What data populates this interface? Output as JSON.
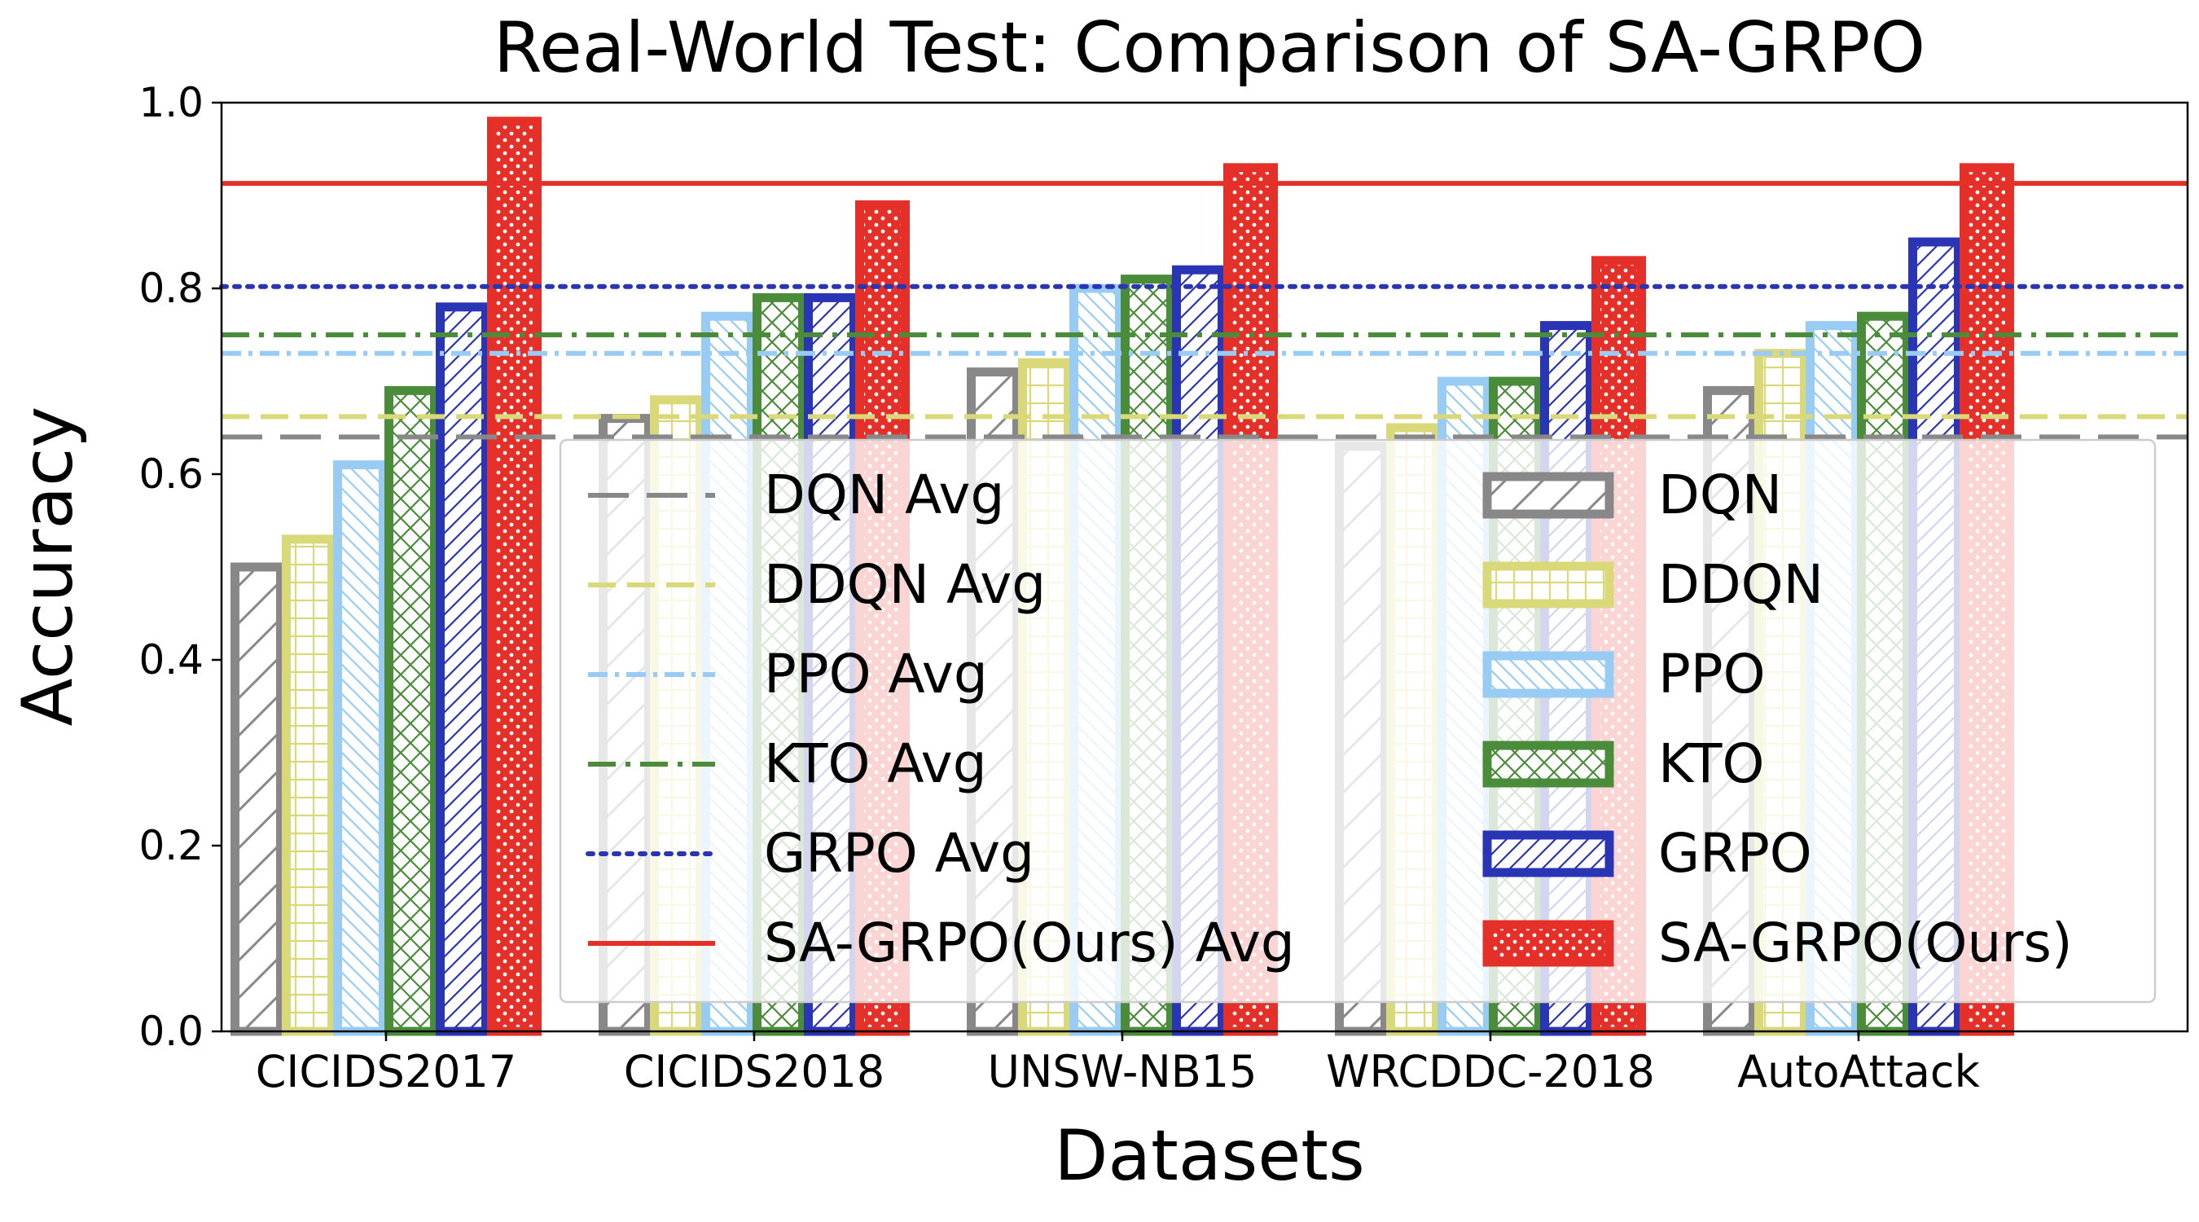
{
  "colors": {
    "DQN": "#888888",
    "DDQN": "#d9d97a",
    "PPO": "#99ccf5",
    "KTO": "#4a8c3a",
    "GRPO": "#2a35b5",
    "SA-GRPO(Ours)": "#e5302a"
  },
  "chart_data": {
    "type": "bar",
    "title": "Real-World Test: Comparison of SA-GRPO",
    "xlabel": "Datasets",
    "ylabel": "Accuracy",
    "ylim": [
      0.0,
      1.0
    ],
    "yticks": [
      "0.0",
      "0.2",
      "0.4",
      "0.6",
      "0.8",
      "1.0"
    ],
    "categories": [
      "CICIDS2017",
      "CICIDS2018",
      "UNSW-NB15",
      "WRCDDC-2018",
      "AutoAttack"
    ],
    "series": [
      {
        "name": "DQN",
        "hatch": "diag",
        "values": [
          0.5,
          0.66,
          0.71,
          0.63,
          0.69
        ]
      },
      {
        "name": "DDQN",
        "hatch": "grid",
        "values": [
          0.53,
          0.68,
          0.72,
          0.65,
          0.73
        ]
      },
      {
        "name": "PPO",
        "hatch": "rdiag",
        "values": [
          0.61,
          0.77,
          0.8,
          0.7,
          0.76
        ]
      },
      {
        "name": "KTO",
        "hatch": "cross",
        "values": [
          0.69,
          0.79,
          0.81,
          0.7,
          0.77
        ]
      },
      {
        "name": "GRPO",
        "hatch": "diag",
        "values": [
          0.78,
          0.79,
          0.82,
          0.76,
          0.85
        ]
      },
      {
        "name": "SA-GRPO(Ours)",
        "hatch": "stars",
        "values": [
          0.98,
          0.89,
          0.93,
          0.83,
          0.93
        ]
      }
    ],
    "averages": [
      {
        "name": "DQN Avg",
        "series": "DQN",
        "value": 0.64,
        "dash": "dashed"
      },
      {
        "name": "DDQN Avg",
        "series": "DDQN",
        "value": 0.662,
        "dash": "dashed-short"
      },
      {
        "name": "PPO Avg",
        "series": "PPO",
        "value": 0.73,
        "dash": "dashdot-fine"
      },
      {
        "name": "KTO Avg",
        "series": "KTO",
        "value": 0.75,
        "dash": "dashdot"
      },
      {
        "name": "GRPO Avg",
        "series": "GRPO",
        "value": 0.802,
        "dash": "dotted"
      },
      {
        "name": "SA-GRPO(Ours) Avg",
        "series": "SA-GRPO(Ours)",
        "value": 0.913,
        "dash": "solid"
      }
    ],
    "legend_placement": "lower-right, two columns"
  }
}
